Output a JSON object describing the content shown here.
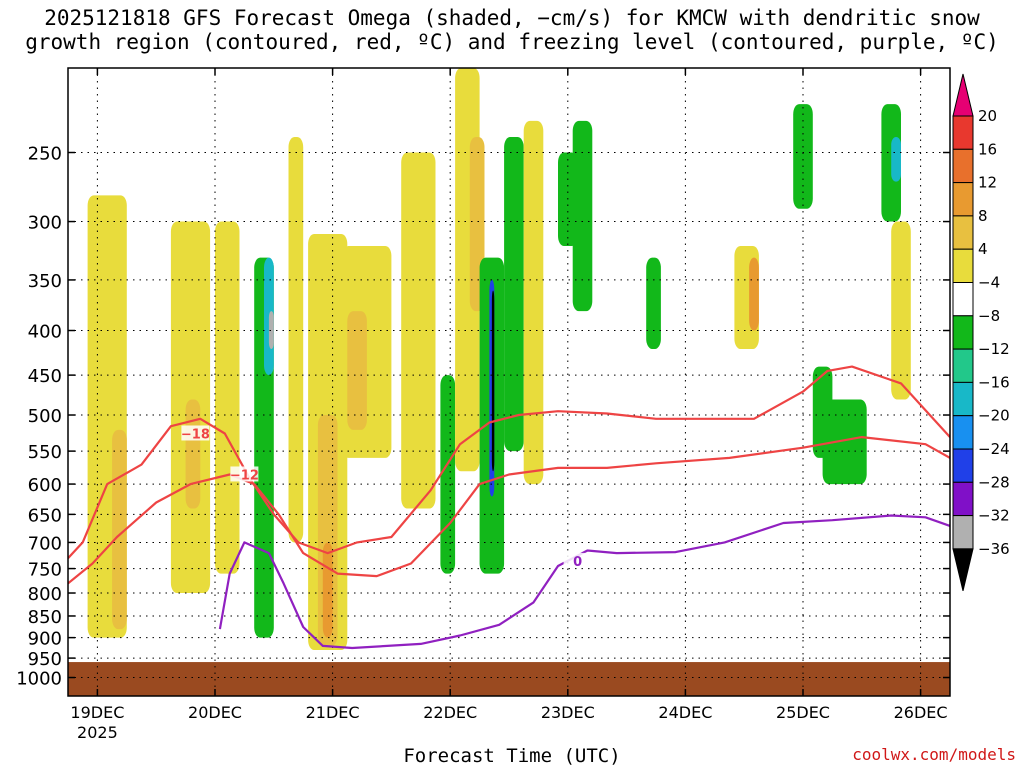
{
  "chart_data": {
    "type": "heatmap",
    "title_line1": "2025121818 GFS Forecast Omega (shaded, −cm/s) for KMCW with dendritic snow",
    "title_line2": "growth region (contoured, red, ºC) and freezing level (contoured, purple, ºC)",
    "xlabel": "Forecast Time (UTC)",
    "ylabel": "",
    "credit": "coolwx.com/models",
    "x_axis": {
      "unit": "hours since 2025-12-18 18Z",
      "range": [
        0,
        180
      ],
      "ticks": [
        {
          "hour": 6,
          "label": "19DEC",
          "sublabel": "2025"
        },
        {
          "hour": 30,
          "label": "20DEC",
          "sublabel": ""
        },
        {
          "hour": 54,
          "label": "21DEC",
          "sublabel": ""
        },
        {
          "hour": 78,
          "label": "22DEC",
          "sublabel": ""
        },
        {
          "hour": 102,
          "label": "23DEC",
          "sublabel": ""
        },
        {
          "hour": 126,
          "label": "24DEC",
          "sublabel": ""
        },
        {
          "hour": 150,
          "label": "25DEC",
          "sublabel": ""
        },
        {
          "hour": 174,
          "label": "26DEC",
          "sublabel": ""
        }
      ]
    },
    "y_axis": {
      "unit": "hPa",
      "scale": "log",
      "range": [
        1050,
        200
      ],
      "ticks": [
        250,
        300,
        350,
        400,
        450,
        500,
        550,
        600,
        650,
        700,
        750,
        800,
        850,
        900,
        950,
        1000
      ]
    },
    "colorbar": {
      "labels": [
        "20",
        "16",
        "12",
        "8",
        "4",
        "−4",
        "−8",
        "−12",
        "−16",
        "−20",
        "−24",
        "−28",
        "−32",
        "−36"
      ],
      "bins": [
        {
          "color": "#e60073"
        },
        {
          "color": "#e8382e"
        },
        {
          "color": "#e8702c"
        },
        {
          "color": "#e89a30"
        },
        {
          "color": "#e8c040"
        },
        {
          "color": "#e8dc3c"
        },
        {
          "color": "#ffffff"
        },
        {
          "color": "#12b81a"
        },
        {
          "color": "#22c88a"
        },
        {
          "color": "#18b8c8"
        },
        {
          "color": "#1890f0"
        },
        {
          "color": "#2040e8"
        },
        {
          "color": "#8010c8"
        },
        {
          "color": "#b0b0b0"
        },
        {
          "color": "#000000"
        }
      ]
    },
    "omega_features": [
      {
        "hours": [
          4,
          12
        ],
        "p": [
          280,
          900
        ],
        "value": 4
      },
      {
        "hours": [
          9,
          12
        ],
        "p": [
          520,
          880
        ],
        "value": 6
      },
      {
        "hours": [
          21,
          29
        ],
        "p": [
          300,
          800
        ],
        "value": 4
      },
      {
        "hours": [
          24,
          27
        ],
        "p": [
          480,
          640
        ],
        "value": 7
      },
      {
        "hours": [
          30,
          35
        ],
        "p": [
          300,
          760
        ],
        "value": 4
      },
      {
        "hours": [
          38,
          42
        ],
        "p": [
          330,
          900
        ],
        "value": -7
      },
      {
        "hours": [
          40,
          42
        ],
        "p": [
          330,
          450
        ],
        "value": -13
      },
      {
        "hours": [
          41,
          42
        ],
        "p": [
          380,
          420
        ],
        "value": -30
      },
      {
        "hours": [
          45,
          48
        ],
        "p": [
          240,
          700
        ],
        "value": 4
      },
      {
        "hours": [
          49,
          57
        ],
        "p": [
          310,
          930
        ],
        "value": 4
      },
      {
        "hours": [
          51,
          55
        ],
        "p": [
          500,
          920
        ],
        "value": 7
      },
      {
        "hours": [
          52,
          54
        ],
        "p": [
          700,
          900
        ],
        "value": 10
      },
      {
        "hours": [
          56,
          66
        ],
        "p": [
          320,
          560
        ],
        "value": 5
      },
      {
        "hours": [
          57,
          61
        ],
        "p": [
          380,
          520
        ],
        "value": 7
      },
      {
        "hours": [
          68,
          75
        ],
        "p": [
          250,
          640
        ],
        "value": 4
      },
      {
        "hours": [
          76,
          79
        ],
        "p": [
          450,
          760
        ],
        "value": -7
      },
      {
        "hours": [
          79,
          84
        ],
        "p": [
          200,
          580
        ],
        "value": 4
      },
      {
        "hours": [
          82,
          85
        ],
        "p": [
          240,
          380
        ],
        "value": 7
      },
      {
        "hours": [
          85,
          86
        ],
        "p": [
          420,
          560
        ],
        "value": -14
      },
      {
        "hours": [
          84,
          89
        ],
        "p": [
          330,
          760
        ],
        "value": -7
      },
      {
        "hours": [
          86,
          87
        ],
        "p": [
          350,
          620
        ],
        "value": -22
      },
      {
        "hours": [
          86.5,
          87
        ],
        "p": [
          360,
          580
        ],
        "value": -40
      },
      {
        "hours": [
          89,
          93
        ],
        "p": [
          240,
          550
        ],
        "value": -7
      },
      {
        "hours": [
          93,
          97
        ],
        "p": [
          230,
          600
        ],
        "value": 4
      },
      {
        "hours": [
          100,
          104
        ],
        "p": [
          250,
          320
        ],
        "value": -6
      },
      {
        "hours": [
          103,
          107
        ],
        "p": [
          230,
          380
        ],
        "value": -6
      },
      {
        "hours": [
          118,
          121
        ],
        "p": [
          330,
          420
        ],
        "value": -6
      },
      {
        "hours": [
          136,
          141
        ],
        "p": [
          320,
          420
        ],
        "value": 5
      },
      {
        "hours": [
          139,
          141
        ],
        "p": [
          330,
          400
        ],
        "value": 9
      },
      {
        "hours": [
          148,
          152
        ],
        "p": [
          220,
          290
        ],
        "value": -7
      },
      {
        "hours": [
          152,
          156
        ],
        "p": [
          440,
          560
        ],
        "value": -6
      },
      {
        "hours": [
          154,
          163
        ],
        "p": [
          480,
          600
        ],
        "value": -6
      },
      {
        "hours": [
          166,
          170
        ],
        "p": [
          220,
          300
        ],
        "value": -7
      },
      {
        "hours": [
          168,
          170
        ],
        "p": [
          240,
          270
        ],
        "value": -15
      },
      {
        "hours": [
          168,
          172
        ],
        "p": [
          300,
          480
        ],
        "value": 5
      }
    ],
    "contours": [
      {
        "name": "dendritic-18C",
        "label": "−18",
        "color": "#ee4444",
        "label_at": {
          "hour": 26,
          "p": 525
        },
        "points": [
          [
            0,
            730
          ],
          [
            3,
            700
          ],
          [
            8,
            600
          ],
          [
            15,
            570
          ],
          [
            21,
            515
          ],
          [
            27,
            505
          ],
          [
            32,
            525
          ],
          [
            37,
            590
          ],
          [
            42,
            650
          ],
          [
            47,
            700
          ],
          [
            53,
            720
          ],
          [
            59,
            700
          ],
          [
            66,
            690
          ],
          [
            74,
            610
          ],
          [
            80,
            540
          ],
          [
            86,
            510
          ],
          [
            92,
            500
          ],
          [
            100,
            495
          ],
          [
            110,
            498
          ],
          [
            120,
            505
          ],
          [
            140,
            505
          ],
          [
            150,
            470
          ],
          [
            155,
            445
          ],
          [
            160,
            440
          ],
          [
            170,
            460
          ],
          [
            180,
            530
          ]
        ]
      },
      {
        "name": "dendritic-12C",
        "label": "−12",
        "color": "#ee4444",
        "label_at": {
          "hour": 36,
          "p": 585
        },
        "points": [
          [
            0,
            780
          ],
          [
            5,
            740
          ],
          [
            10,
            690
          ],
          [
            18,
            630
          ],
          [
            25,
            600
          ],
          [
            33,
            585
          ],
          [
            38,
            600
          ],
          [
            43,
            650
          ],
          [
            48,
            720
          ],
          [
            55,
            760
          ],
          [
            63,
            765
          ],
          [
            70,
            740
          ],
          [
            78,
            665
          ],
          [
            84,
            600
          ],
          [
            90,
            585
          ],
          [
            100,
            575
          ],
          [
            110,
            575
          ],
          [
            120,
            568
          ],
          [
            135,
            560
          ],
          [
            150,
            545
          ],
          [
            162,
            530
          ],
          [
            175,
            540
          ],
          [
            180,
            560
          ]
        ]
      },
      {
        "name": "freezing-level-0C",
        "label": "0",
        "color": "#9020c0",
        "label_at": {
          "hour": 104,
          "p": 735
        },
        "points": [
          [
            31,
            880
          ],
          [
            33,
            760
          ],
          [
            36,
            700
          ],
          [
            41,
            720
          ],
          [
            44,
            780
          ],
          [
            48,
            875
          ],
          [
            52,
            920
          ],
          [
            58,
            925
          ],
          [
            72,
            915
          ],
          [
            80,
            895
          ],
          [
            88,
            870
          ],
          [
            95,
            820
          ],
          [
            100,
            745
          ],
          [
            106,
            715
          ],
          [
            112,
            720
          ],
          [
            124,
            718
          ],
          [
            134,
            700
          ],
          [
            146,
            665
          ],
          [
            156,
            660
          ],
          [
            168,
            652
          ],
          [
            175,
            655
          ],
          [
            180,
            670
          ]
        ]
      }
    ],
    "ground": {
      "color": "#9a4a20",
      "surface_p": 960
    }
  }
}
